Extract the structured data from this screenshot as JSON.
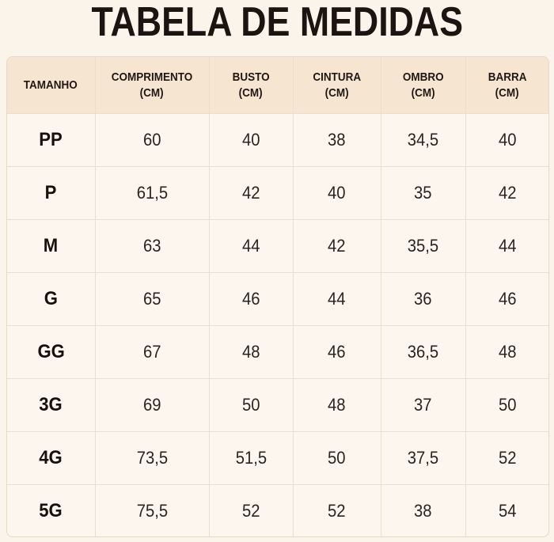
{
  "title": "TABELA DE MEDIDAS",
  "table": {
    "headers": [
      {
        "line1": "TAMANHO",
        "line2": ""
      },
      {
        "line1": "COMPRIMENTO",
        "line2": "(CM)"
      },
      {
        "line1": "BUSTO",
        "line2": "(CM)"
      },
      {
        "line1": "CINTURA",
        "line2": "(CM)"
      },
      {
        "line1": "OMBRO",
        "line2": "(CM)"
      },
      {
        "line1": "BARRA",
        "line2": "(CM)"
      }
    ],
    "rows": [
      [
        "PP",
        "60",
        "40",
        "38",
        "34,5",
        "40"
      ],
      [
        "P",
        "61,5",
        "42",
        "40",
        "35",
        "42"
      ],
      [
        "M",
        "63",
        "44",
        "42",
        "35,5",
        "44"
      ],
      [
        "G",
        "65",
        "46",
        "44",
        "36",
        "46"
      ],
      [
        "GG",
        "67",
        "48",
        "46",
        "36,5",
        "48"
      ],
      [
        "3G",
        "69",
        "50",
        "48",
        "37",
        "50"
      ],
      [
        "4G",
        "73,5",
        "51,5",
        "50",
        "37,5",
        "52"
      ],
      [
        "5G",
        "75,5",
        "52",
        "52",
        "38",
        "54"
      ]
    ]
  },
  "colors": {
    "background": "#fbf4ea",
    "header_background": "#f6e6d1",
    "grid_line": "#eadfce",
    "text": "#1a1410"
  }
}
